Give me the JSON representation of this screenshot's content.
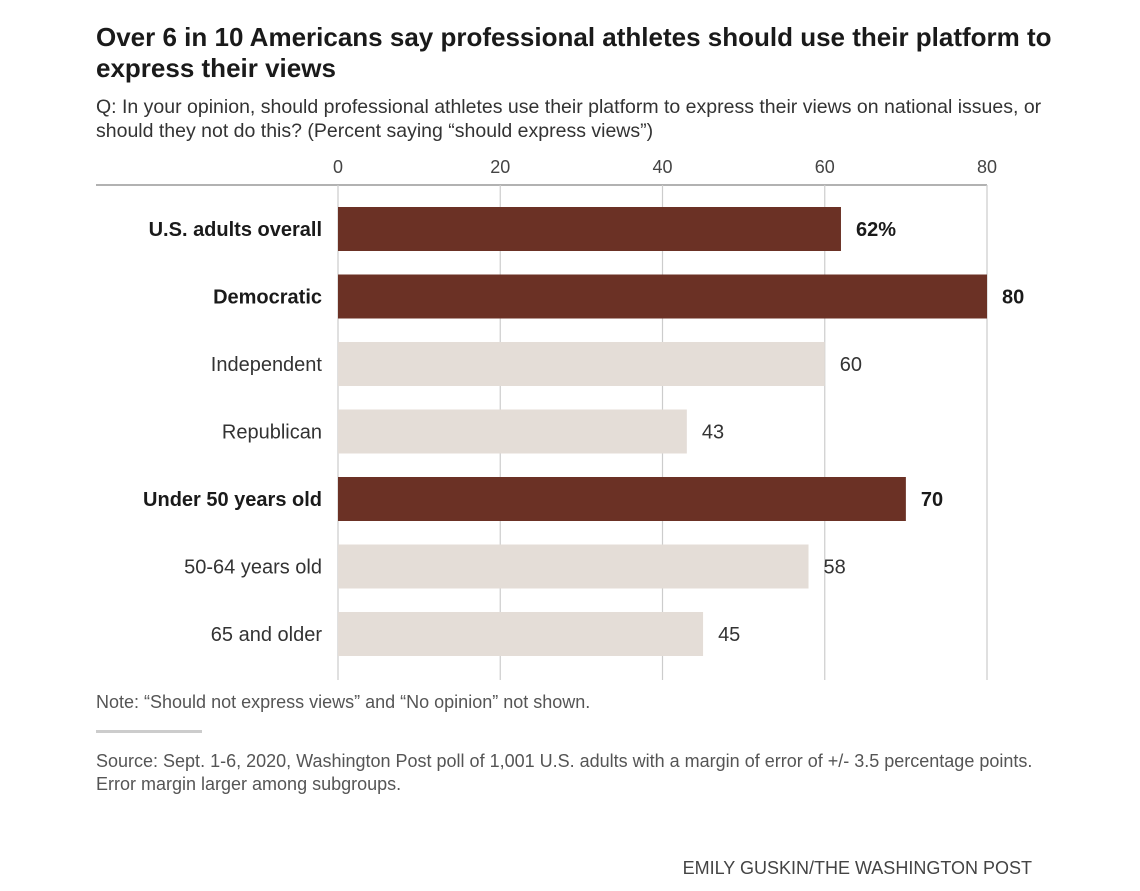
{
  "chart_data": {
    "type": "bar",
    "title": "Over 6 in 10 Americans say professional athletes should use their platform to express their views",
    "subtitle": "Q: In your opinion, should professional athletes use their platform to express their views on national issues, or should they not do this? (Percent saying “should express views”)",
    "xlim": [
      0,
      80
    ],
    "ticks": [
      "0",
      "20",
      "40",
      "60",
      "80"
    ],
    "tick_values": [
      0,
      20,
      40,
      60,
      80
    ],
    "categories": [
      "U.S. adults overall",
      "Democratic",
      "Independent",
      "Republican",
      "Under 50 years old",
      "50-64 years old",
      "65 and older"
    ],
    "values": [
      62,
      80,
      60,
      43,
      70,
      58,
      45
    ],
    "value_labels": [
      "62%",
      "80",
      "60",
      "43",
      "70",
      "58",
      "45"
    ],
    "highlight": [
      true,
      true,
      false,
      false,
      true,
      false,
      false
    ],
    "grid": true
  },
  "colors": {
    "highlight": "#6b3125",
    "muted": "#e4ddd7"
  },
  "note": "Note: “Should not express views” and “No opinion” not shown.",
  "source": "Source: Sept. 1-6, 2020, Washington Post poll of 1,001 U.S. adults with a margin of error of +/- 3.5 percentage points. Error margin larger among subgroups.",
  "credit": "EMILY GUSKIN/THE WASHINGTON POST"
}
